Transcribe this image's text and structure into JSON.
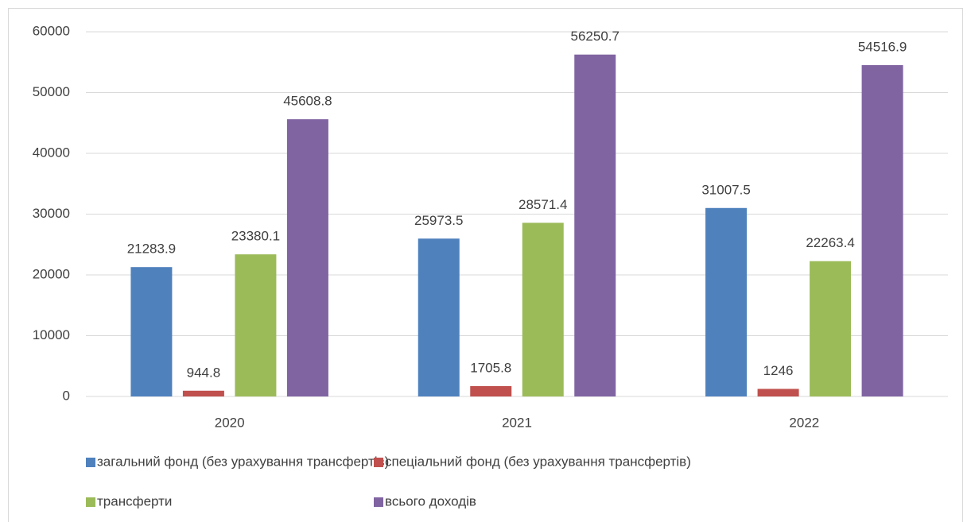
{
  "chart_data": {
    "type": "bar",
    "categories": [
      "2020",
      "2021",
      "2022"
    ],
    "series": [
      {
        "name": "загальний фонд (без урахування трансфертів)",
        "color": "#4f81bd",
        "values": [
          21283.9,
          25973.5,
          31007.5
        ]
      },
      {
        "name": "спеціальний фонд (без урахування трансфертів)",
        "color": "#c0504d",
        "values": [
          944.8,
          1705.8,
          1246
        ]
      },
      {
        "name": "трансферти",
        "color": "#9bbb59",
        "values": [
          23380.1,
          28571.4,
          22263.4
        ]
      },
      {
        "name": "всього доходів",
        "color": "#8064a2",
        "values": [
          45608.8,
          56250.7,
          54516.9
        ]
      }
    ],
    "ylim": [
      0,
      60000
    ],
    "yticks": [
      0,
      10000,
      20000,
      30000,
      40000,
      50000,
      60000
    ],
    "grid": true,
    "legend": "bottom"
  }
}
